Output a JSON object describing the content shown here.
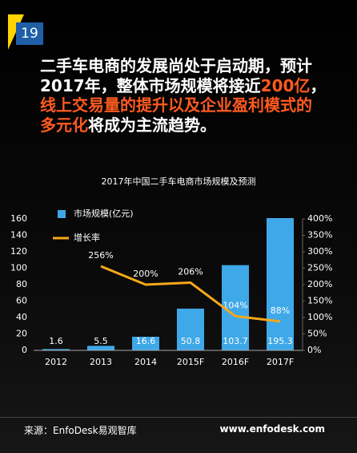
{
  "slide": {
    "page_number": "19",
    "headline": [
      [
        "二手车电商的发展尚处于启动期，预计"
      ],
      [
        "2017年，整体市场规模将接近",
        "200亿",
        "，"
      ],
      [
        "线上交易量的提升以及企业盈利模式的"
      ],
      [
        "多元化",
        "将成为主流趋势。"
      ]
    ],
    "source": "来源：EnfoDesk易观智库",
    "website": "www.enfodesk.com"
  },
  "chart_data": {
    "type": "bar",
    "title": "2017年中国二手车电商市场规模及预测",
    "categories": [
      "2012",
      "2013",
      "2014",
      "2015F",
      "2016F",
      "2017F"
    ],
    "series": [
      {
        "name": "市场规模(亿元)",
        "color": "#3ea8e8",
        "type": "bar",
        "values": [
          1.6,
          5.5,
          16.6,
          50.8,
          103.7,
          195.3
        ]
      },
      {
        "name": "增长率",
        "color": "#f7a71b",
        "type": "line",
        "axis": "y2",
        "values": [
          null,
          256,
          200,
          206,
          104,
          88
        ],
        "value_labels": [
          null,
          "256%",
          "200%",
          "206%",
          "104%",
          "88%"
        ]
      }
    ],
    "ylim": [
      0,
      160
    ],
    "yticks": [
      0,
      20,
      40,
      60,
      80,
      100,
      120,
      140,
      160
    ],
    "y2lim": [
      0,
      400
    ],
    "y2ticks": [
      {
        "value": 0,
        "label": "0%"
      },
      {
        "value": 50,
        "label": "50%"
      },
      {
        "value": 100,
        "label": "100%"
      },
      {
        "value": 150,
        "label": "150%"
      },
      {
        "value": 200,
        "label": "200%"
      },
      {
        "value": 250,
        "label": "250%"
      },
      {
        "value": 300,
        "label": "300%"
      },
      {
        "value": 350,
        "label": "350%"
      },
      {
        "value": 400,
        "label": "400%"
      }
    ],
    "legend": "top-left",
    "grid": false
  }
}
